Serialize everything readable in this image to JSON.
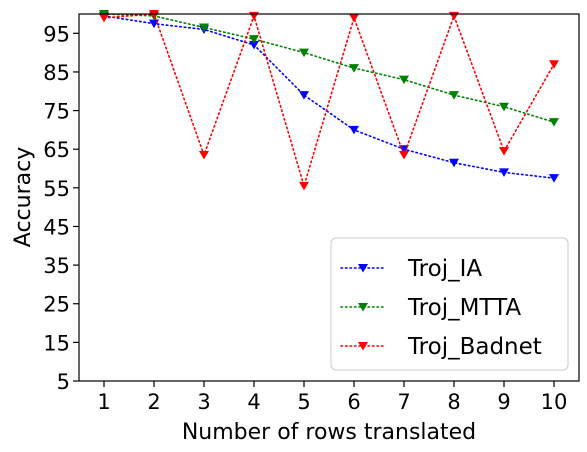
{
  "chart_data": {
    "type": "line",
    "xlabel": "Number of rows translated",
    "ylabel": "Accuracy",
    "x": [
      1,
      2,
      3,
      4,
      5,
      6,
      7,
      8,
      9,
      10
    ],
    "xlim": [
      0.5,
      10.5
    ],
    "ylim": [
      5,
      100
    ],
    "yticks": [
      5,
      15,
      25,
      35,
      45,
      55,
      65,
      75,
      85,
      95
    ],
    "grid": false,
    "legend_position": "lower-right",
    "series": [
      {
        "name": "Troj_IA",
        "color": "#0000ff",
        "marker": "triangle-down",
        "line_style": "dotted",
        "values": [
          99.5,
          97.5,
          96,
          92,
          79,
          70,
          65,
          61.5,
          59,
          57.5
        ]
      },
      {
        "name": "Troj_MTTA",
        "color": "#008000",
        "marker": "triangle-down",
        "line_style": "dotted",
        "values": [
          100,
          99.5,
          96.5,
          93.5,
          90,
          86,
          83,
          79,
          76,
          72
        ]
      },
      {
        "name": "Troj_Badnet",
        "color": "#ff0000",
        "marker": "triangle-down",
        "line_style": "dotted",
        "values": [
          99,
          100,
          63.5,
          99.5,
          55.5,
          99,
          63.5,
          99.5,
          64.5,
          87
        ]
      }
    ]
  }
}
